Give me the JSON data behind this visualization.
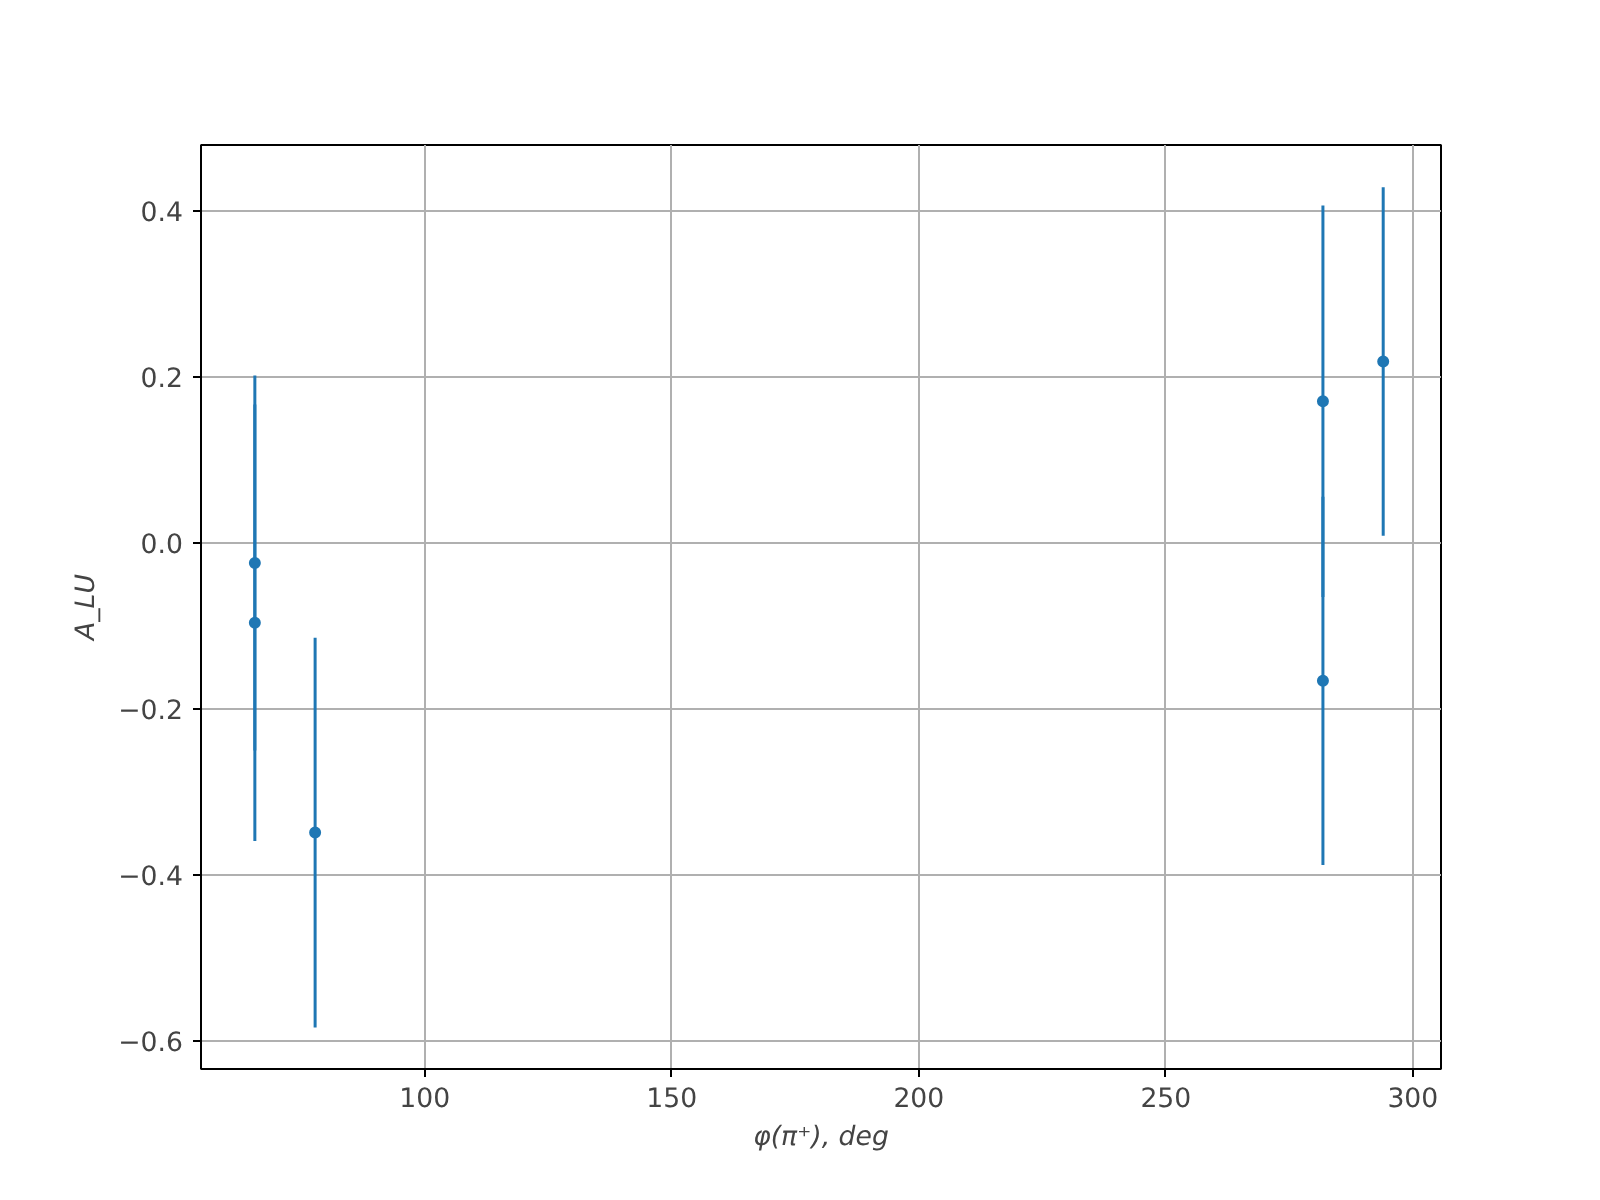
{
  "chart_data": {
    "type": "scatter",
    "xlabel": "φ(π⁺), deg",
    "ylabel": "A_LU",
    "x": [
      65.6,
      65.6,
      77.8,
      281.8,
      281.8,
      294.0
    ],
    "series": [
      {
        "color": "#1f77b4",
        "values": [
          -0.024,
          -0.096,
          -0.349,
          0.171,
          -0.166,
          0.219
        ],
        "errors": [
          0.226,
          0.263,
          0.235,
          0.236,
          0.222,
          0.21
        ]
      }
    ],
    "xlim": [
      54.7,
      305.7
    ],
    "ylim": [
      -0.634,
      0.48
    ],
    "xticks": [
      100,
      150,
      200,
      250,
      300
    ],
    "yticks": [
      {
        "value": -0.6,
        "label": "−0.6"
      },
      {
        "value": -0.4,
        "label": "−0.4"
      },
      {
        "value": -0.2,
        "label": "−0.2"
      },
      {
        "value": 0,
        "label": "0.0"
      },
      {
        "value": 0.2,
        "label": "0.2"
      },
      {
        "value": 0.4,
        "label": "0.4"
      }
    ],
    "grid": true,
    "marker": "circle"
  }
}
